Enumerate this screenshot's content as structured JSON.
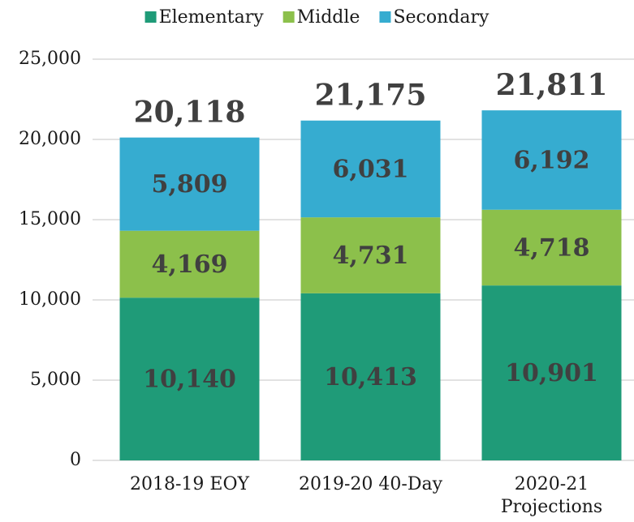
{
  "chart_data": {
    "type": "stacked_bar",
    "categories": [
      "2018-19 EOY",
      "2019-20 40-Day",
      "2020-21 Projections"
    ],
    "series": [
      {
        "name": "Elementary",
        "color": "#1f9b78",
        "values": [
          10140,
          10413,
          10901
        ],
        "value_labels": [
          "10,140",
          "10,413",
          "10,901"
        ]
      },
      {
        "name": "Middle",
        "color": "#8cc04b",
        "values": [
          4169,
          4731,
          4718
        ],
        "value_labels": [
          "4,169",
          "4,731",
          "4,718"
        ]
      },
      {
        "name": "Secondary",
        "color": "#36acd0",
        "values": [
          5809,
          6031,
          6192
        ],
        "value_labels": [
          "5,809",
          "6,031",
          "6,192"
        ]
      }
    ],
    "totals": [
      20118,
      21175,
      21811
    ],
    "total_labels": [
      "20,118",
      "21,175",
      "21,811"
    ],
    "ylim": [
      0,
      25000
    ],
    "yticks": [
      0,
      {
        "value": 5000,
        "label": "5,000"
      },
      {
        "value": 10000,
        "label": "10,000"
      },
      {
        "value": 15000,
        "label": "15,000"
      },
      {
        "value": 20000,
        "label": "20,000"
      },
      {
        "value": 25000,
        "label": "25,000"
      }
    ],
    "grid": true,
    "legend": "top"
  }
}
